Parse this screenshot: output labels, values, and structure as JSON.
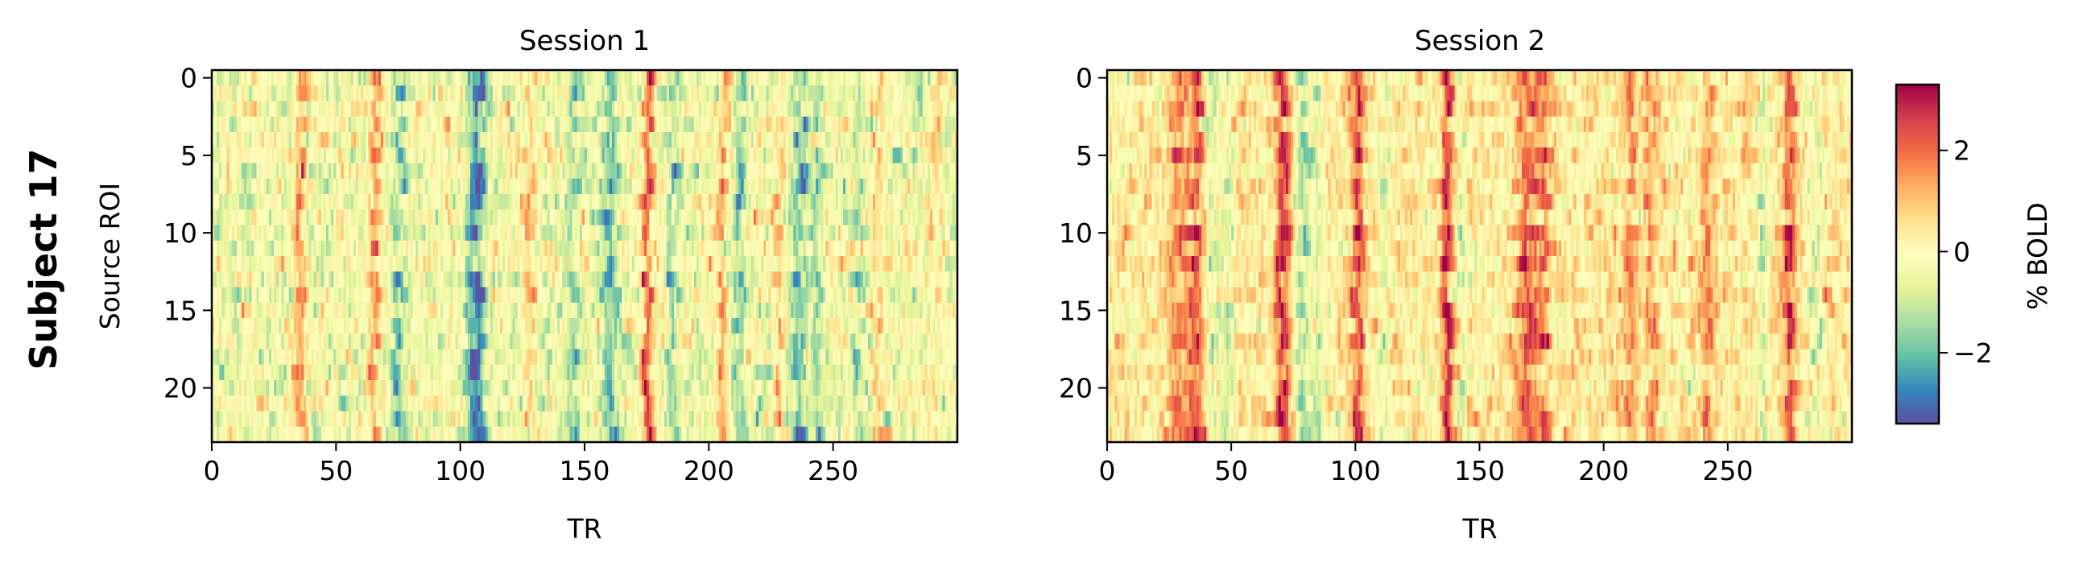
{
  "suptitle": "Subject 17",
  "chart_data": [
    {
      "type": "heatmap",
      "title": "Session 1",
      "xlabel": "TR",
      "ylabel": "Source ROI",
      "n_rows": 24,
      "n_cols": 300,
      "xlim": [
        0,
        299
      ],
      "ylim": [
        23,
        0
      ],
      "xticks": [
        0,
        50,
        100,
        150,
        200,
        250
      ],
      "xtick_labels": [
        "0",
        "50",
        "100",
        "150",
        "200",
        "250"
      ],
      "yticks": [
        0,
        5,
        10,
        15,
        20
      ],
      "ytick_labels": [
        "0",
        "5",
        "10",
        "15",
        "20"
      ],
      "baseline": -0.35,
      "noise_sd": 0.95,
      "seed": 17,
      "temporal_events": [
        [
          35,
          1.6,
          2
        ],
        [
          65,
          1.5,
          2
        ],
        [
          75,
          -1.3,
          2
        ],
        [
          105,
          -1.8,
          2
        ],
        [
          108,
          -1.5,
          1.5
        ],
        [
          128,
          1.0,
          2
        ],
        [
          145,
          -1.0,
          2
        ],
        [
          160,
          -1.5,
          2
        ],
        [
          175,
          2.7,
          1.5
        ],
        [
          185,
          -1.2,
          1.5
        ],
        [
          205,
          1.4,
          1.5
        ],
        [
          212,
          -1.2,
          1.5
        ],
        [
          228,
          1.2,
          1.5
        ],
        [
          236,
          -1.6,
          2
        ],
        [
          243,
          -1.0,
          1.5
        ],
        [
          260,
          -1.0,
          1.5
        ],
        [
          268,
          1.0,
          1.5
        ],
        [
          290,
          0.8,
          2
        ]
      ]
    },
    {
      "type": "heatmap",
      "title": "Session 2",
      "xlabel": "TR",
      "ylabel": "",
      "n_rows": 24,
      "n_cols": 300,
      "xlim": [
        0,
        299
      ],
      "ylim": [
        23,
        0
      ],
      "xticks": [
        0,
        50,
        100,
        150,
        200,
        250
      ],
      "xtick_labels": [
        "0",
        "50",
        "100",
        "150",
        "200",
        "250"
      ],
      "yticks": [
        0,
        5,
        10,
        15,
        20
      ],
      "ytick_labels": [
        "0",
        "5",
        "10",
        "15",
        "20"
      ],
      "baseline": 0.3,
      "noise_sd": 0.85,
      "seed": 42,
      "temporal_events": [
        [
          28,
          1.3,
          3
        ],
        [
          35,
          1.8,
          2
        ],
        [
          42,
          -1.0,
          2
        ],
        [
          48,
          -0.8,
          2
        ],
        [
          70,
          2.1,
          2
        ],
        [
          78,
          -1.6,
          2
        ],
        [
          84,
          -0.8,
          2
        ],
        [
          100,
          2.0,
          1.8
        ],
        [
          110,
          -0.7,
          2
        ],
        [
          136,
          2.3,
          1.5
        ],
        [
          142,
          -0.8,
          1.5
        ],
        [
          168,
          1.6,
          3
        ],
        [
          175,
          1.3,
          2
        ],
        [
          210,
          1.2,
          2
        ],
        [
          218,
          1.0,
          2
        ],
        [
          241,
          1.1,
          2
        ],
        [
          263,
          -1.0,
          1.5
        ],
        [
          274,
          1.9,
          1.8
        ],
        [
          285,
          -0.6,
          3
        ]
      ]
    }
  ],
  "colorbar": {
    "label": "% BOLD",
    "colormap": "Spectral_r",
    "range": [
      -3.4,
      3.3
    ],
    "ticks": [
      -2,
      0,
      2
    ],
    "tick_labels": [
      "−2",
      "0",
      "2"
    ],
    "colors": [
      "#5e4fa2",
      "#3288bd",
      "#66c2a5",
      "#abdda4",
      "#e6f598",
      "#ffffbf",
      "#fee08b",
      "#fdae61",
      "#f46d43",
      "#d53e4f",
      "#9e0142"
    ]
  }
}
